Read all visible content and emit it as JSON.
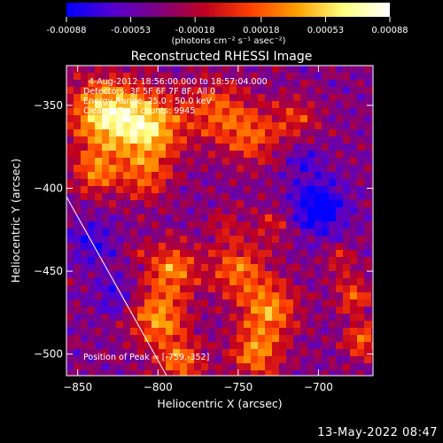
{
  "chart_data": {
    "type": "heatmap",
    "title": "Reconstructed RHESSI Image",
    "xlabel": "Heliocentric X (arcsec)",
    "ylabel": "Heliocentric Y (arcsec)",
    "xlim": [
      -857,
      -666
    ],
    "ylim": [
      -513,
      -326
    ],
    "x_ticks": [
      -850,
      -800,
      -750,
      -700
    ],
    "y_ticks": [
      -350,
      -400,
      -450,
      -500
    ],
    "colorbar": {
      "label": "(photons cm⁻² s⁻¹ asec⁻²)",
      "min": -0.00088,
      "max": 0.00088,
      "ticks": [
        "-0.00088",
        "-0.00053",
        "-0.00018",
        "0.00018",
        "0.00053",
        "0.00088"
      ],
      "colors": [
        "#0000ff",
        "#5500d0",
        "#800080",
        "#c00020",
        "#ff4000",
        "#ffa000",
        "#ffff80",
        "#ffffff"
      ]
    },
    "annotations": [
      "4-Aug-2012 18:56:00.000 to 18:57:04.000",
      "Detectors: 3F 5F 6F 7F 8F, All 0",
      "Energy Range: 25.0 - 50.0 keV",
      "Clean    Total counts: 9945",
      "Position of Peak = [-759,-352]"
    ],
    "peak": [
      -759,
      -352
    ],
    "grid": false
  },
  "footer": {
    "timestamp": "13-May-2022 08:47"
  }
}
